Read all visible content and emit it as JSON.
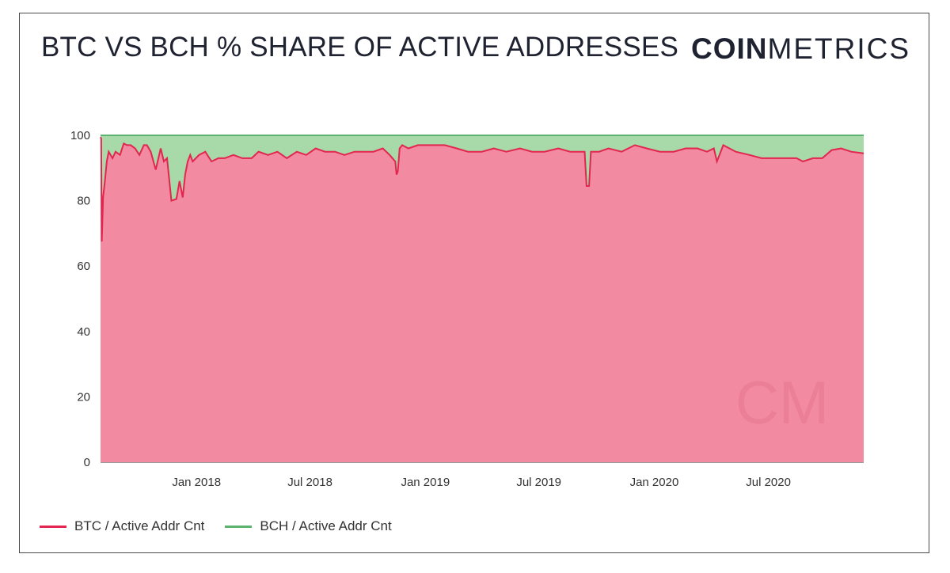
{
  "header": {
    "title": "BTC VS BCH % SHARE OF ACTIVE ADDRESSES",
    "brand_bold": "COIN",
    "brand_light": "METRICS",
    "watermark": "CM"
  },
  "colors": {
    "btc_line": "#e2264f",
    "btc_fill": "#f28aa1",
    "bch_line": "#5cb370",
    "bch_fill": "#a8d9a8"
  },
  "chart_data": {
    "type": "area",
    "stacked": true,
    "title": "BTC VS BCH % SHARE OF ACTIVE ADDRESSES",
    "xlabel": "",
    "ylabel": "",
    "ylim": [
      0,
      100
    ],
    "y_ticks": [
      "0",
      "20",
      "40",
      "60",
      "80",
      "100"
    ],
    "x_tick_labels": [
      "Jan 2018",
      "Jul 2018",
      "Jan 2019",
      "Jul 2019",
      "Jan 2020",
      "Jul 2020"
    ],
    "x_tick_dates": [
      "2018-01-01",
      "2018-07-01",
      "2019-01-01",
      "2019-07-01",
      "2020-01-01",
      "2020-07-01"
    ],
    "xlim": [
      "2017-08-01",
      "2020-11-30"
    ],
    "grid": "horizontal",
    "legend_position": "bottom-left",
    "x": [
      "2017-08-01",
      "2017-08-02",
      "2017-08-03",
      "2017-08-05",
      "2017-08-08",
      "2017-08-11",
      "2017-08-14",
      "2017-08-20",
      "2017-08-25",
      "2017-09-01",
      "2017-09-07",
      "2017-09-12",
      "2017-09-18",
      "2017-09-25",
      "2017-10-02",
      "2017-10-09",
      "2017-10-14",
      "2017-10-20",
      "2017-10-28",
      "2017-11-05",
      "2017-11-10",
      "2017-11-15",
      "2017-11-22",
      "2017-11-30",
      "2017-12-05",
      "2017-12-10",
      "2017-12-14",
      "2017-12-18",
      "2017-12-22",
      "2017-12-26",
      "2018-01-05",
      "2018-01-15",
      "2018-01-25",
      "2018-02-05",
      "2018-02-15",
      "2018-03-01",
      "2018-03-15",
      "2018-03-30",
      "2018-04-10",
      "2018-04-25",
      "2018-05-10",
      "2018-05-25",
      "2018-06-10",
      "2018-06-25",
      "2018-07-10",
      "2018-07-25",
      "2018-08-10",
      "2018-08-25",
      "2018-09-10",
      "2018-09-25",
      "2018-10-10",
      "2018-10-25",
      "2018-11-05",
      "2018-11-14",
      "2018-11-16",
      "2018-11-18",
      "2018-11-21",
      "2018-11-25",
      "2018-12-05",
      "2018-12-20",
      "2019-01-10",
      "2019-02-01",
      "2019-02-20",
      "2019-03-10",
      "2019-04-01",
      "2019-04-20",
      "2019-05-10",
      "2019-06-01",
      "2019-06-20",
      "2019-07-10",
      "2019-08-01",
      "2019-08-20",
      "2019-09-05",
      "2019-09-12",
      "2019-09-15",
      "2019-09-19",
      "2019-09-22",
      "2019-10-05",
      "2019-10-20",
      "2019-11-10",
      "2019-12-01",
      "2019-12-20",
      "2020-01-10",
      "2020-02-01",
      "2020-02-20",
      "2020-03-10",
      "2020-03-25",
      "2020-04-05",
      "2020-04-10",
      "2020-04-20",
      "2020-05-10",
      "2020-06-01",
      "2020-06-20",
      "2020-07-10",
      "2020-08-01",
      "2020-08-15",
      "2020-08-25",
      "2020-09-10",
      "2020-09-25",
      "2020-10-10",
      "2020-10-25",
      "2020-11-10",
      "2020-11-30"
    ],
    "series": [
      {
        "name": "BTC / Active Addr Cnt",
        "values": [
          99.5,
          99.0,
          67.5,
          81,
          86,
          92,
          95,
          93,
          95,
          94,
          97.5,
          97,
          97,
          96,
          94,
          97,
          97,
          95,
          89.5,
          96,
          92,
          93,
          80,
          80.5,
          86,
          81,
          88,
          92,
          94,
          92,
          94,
          95,
          92,
          93,
          93,
          94,
          93,
          93,
          95,
          94,
          95,
          93,
          95,
          94,
          96,
          95,
          95,
          94,
          95,
          95,
          95,
          96,
          94,
          92,
          88,
          89,
          96,
          97,
          96,
          97,
          97,
          97,
          96,
          95,
          95,
          96,
          95,
          96,
          95,
          95,
          96,
          95,
          95,
          95,
          84.5,
          84.5,
          95,
          95,
          96,
          95,
          97,
          96,
          95,
          95,
          96,
          96,
          95,
          96,
          92,
          97,
          95,
          94,
          93,
          93,
          93,
          93,
          92,
          93,
          93,
          95.5,
          96,
          95,
          94.5
        ]
      },
      {
        "name": "BCH / Active Addr Cnt",
        "values": [
          0.5,
          1.0,
          32.5,
          19,
          14,
          8,
          5,
          7,
          5,
          6,
          2.5,
          3,
          3,
          4,
          6,
          3,
          3,
          5,
          10.5,
          4,
          8,
          7,
          20,
          19.5,
          14,
          19,
          12,
          8,
          6,
          8,
          6,
          5,
          8,
          7,
          7,
          6,
          7,
          7,
          5,
          6,
          5,
          7,
          5,
          6,
          4,
          5,
          5,
          6,
          5,
          5,
          5,
          4,
          6,
          8,
          12,
          11,
          4,
          3,
          4,
          3,
          3,
          3,
          4,
          5,
          5,
          4,
          5,
          4,
          5,
          5,
          4,
          5,
          5,
          5,
          15.5,
          15.5,
          5,
          5,
          4,
          5,
          3,
          4,
          5,
          5,
          4,
          4,
          5,
          4,
          8,
          3,
          5,
          6,
          7,
          7,
          7,
          7,
          8,
          7,
          7,
          4.5,
          4,
          5,
          5.5
        ]
      }
    ]
  },
  "legend": {
    "items": [
      {
        "label": "BTC / Active Addr Cnt",
        "color": "#e2264f"
      },
      {
        "label": "BCH / Active Addr Cnt",
        "color": "#5cb370"
      }
    ]
  }
}
